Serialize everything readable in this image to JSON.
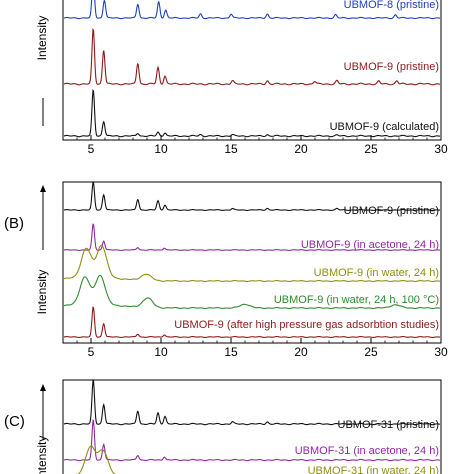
{
  "chart_data": [
    {
      "type": "line",
      "panel": "",
      "xlabel": "",
      "ylabel": "Intensity",
      "xlim": [
        3,
        30
      ],
      "x_ticks": [
        5,
        10,
        15,
        20,
        25,
        30
      ],
      "series": [
        {
          "name": "UBMOF-8 (pristine)",
          "color": "#1f3fbf",
          "peaks": [
            [
              5.1,
              1.0
            ],
            [
              5.9,
              0.45
            ],
            [
              8.3,
              0.35
            ],
            [
              9.8,
              0.4
            ],
            [
              10.3,
              0.2
            ],
            [
              12.8,
              0.1
            ],
            [
              15.0,
              0.1
            ],
            [
              17.6,
              0.1
            ],
            [
              22.5,
              0.08
            ],
            [
              26.8,
              0.08
            ]
          ]
        },
        {
          "name": "UBMOF-9 (pristine)",
          "color": "#8b1a1a",
          "peaks": [
            [
              5.1,
              1.0
            ],
            [
              5.85,
              0.62
            ],
            [
              8.3,
              0.38
            ],
            [
              9.75,
              0.3
            ],
            [
              10.25,
              0.15
            ],
            [
              15.1,
              0.06
            ],
            [
              17.6,
              0.06
            ],
            [
              21.0,
              0.05
            ],
            [
              22.6,
              0.06
            ],
            [
              25.6,
              0.05
            ],
            [
              26.9,
              0.06
            ]
          ]
        },
        {
          "name": "UBMOF-9 (calculated)",
          "color": "#111111",
          "peaks": [
            [
              5.1,
              1.0
            ],
            [
              5.85,
              0.32
            ],
            [
              8.3,
              0.06
            ],
            [
              9.75,
              0.08
            ],
            [
              10.25,
              0.07
            ],
            [
              12.8,
              0.03
            ],
            [
              15.1,
              0.03
            ],
            [
              17.6,
              0.03
            ],
            [
              22.6,
              0.02
            ]
          ]
        }
      ]
    },
    {
      "type": "line",
      "panel": "(B)",
      "xlabel": "",
      "ylabel": "Intensity",
      "xlim": [
        3,
        30
      ],
      "x_ticks": [
        5,
        10,
        15,
        20,
        25,
        30
      ],
      "series": [
        {
          "name": "UBMOF-9 (pristine)",
          "color": "#111111",
          "peaks": [
            [
              5.1,
              1.0
            ],
            [
              5.85,
              0.55
            ],
            [
              8.3,
              0.38
            ],
            [
              9.75,
              0.33
            ],
            [
              10.25,
              0.18
            ],
            [
              15.1,
              0.05
            ],
            [
              17.6,
              0.06
            ],
            [
              22.6,
              0.05
            ]
          ]
        },
        {
          "name": "UBMOF-9 (in acetone, 24 h)",
          "color": "#8e2a9e",
          "peaks": [
            [
              5.1,
              1.0
            ],
            [
              5.85,
              0.35
            ],
            [
              8.3,
              0.1
            ],
            [
              10.2,
              0.08
            ]
          ]
        },
        {
          "name": "UBMOF-9 (in water, 24 h)",
          "color": "#8f8f14",
          "peaks": [
            [
              4.6,
              0.9
            ],
            [
              5.7,
              1.0
            ],
            [
              8.9,
              0.2
            ]
          ]
        },
        {
          "name": "UBMOF-9 (in water, 24 h, 100 °C)",
          "color": "#2e8b2e",
          "peaks": [
            [
              4.5,
              0.85
            ],
            [
              5.6,
              0.9
            ],
            [
              9.0,
              0.3
            ],
            [
              16.0,
              0.12
            ],
            [
              26.8,
              0.1
            ]
          ]
        },
        {
          "name": "UBMOF-9 (after high pressure gas adsorbtion studies)",
          "color": "#8b1a1a",
          "peaks": [
            [
              5.1,
              1.0
            ],
            [
              5.85,
              0.45
            ],
            [
              8.3,
              0.1
            ],
            [
              10.2,
              0.08
            ]
          ]
        }
      ]
    },
    {
      "type": "line",
      "panel": "(C)",
      "xlabel": "",
      "ylabel": "Intensity",
      "xlim": [
        3,
        30
      ],
      "x_ticks": [],
      "series": [
        {
          "name": "UBMOF-31 (pristine)",
          "color": "#111111",
          "peaks": [
            [
              5.1,
              1.0
            ],
            [
              5.85,
              0.45
            ],
            [
              8.3,
              0.3
            ],
            [
              9.75,
              0.25
            ],
            [
              10.25,
              0.18
            ],
            [
              15.1,
              0.05
            ],
            [
              17.6,
              0.05
            ]
          ]
        },
        {
          "name": "UBMOF-31 (in acetone, 24 h)",
          "color": "#8e2a9e",
          "peaks": [
            [
              5.1,
              1.0
            ],
            [
              5.85,
              0.4
            ],
            [
              8.3,
              0.12
            ],
            [
              10.2,
              0.08
            ]
          ]
        },
        {
          "name": "UBMOF-31 (in water, 24 h)",
          "color": "#8f8f14",
          "peaks": [
            [
              4.9,
              0.9
            ],
            [
              5.8,
              0.8
            ]
          ]
        }
      ]
    }
  ]
}
